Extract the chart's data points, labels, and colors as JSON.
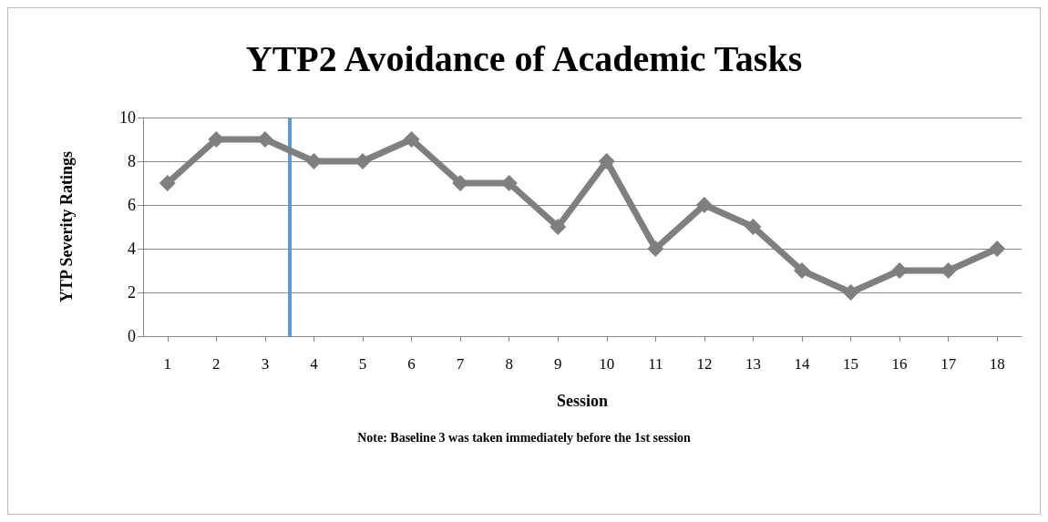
{
  "chart_data": {
    "type": "line",
    "title": "YTP2 Avoidance of Academic Tasks",
    "xlabel": "Session",
    "ylabel": "YTP Severity Ratings",
    "annotations": [
      "Note: Baseline 3 was taken immediately before the 1st session"
    ],
    "x": [
      1,
      2,
      3,
      4,
      5,
      6,
      7,
      8,
      9,
      10,
      11,
      12,
      13,
      14,
      15,
      16,
      17,
      18
    ],
    "series": [
      {
        "color": "#7f7f7f",
        "values": [
          7,
          9,
          9,
          8,
          8,
          9,
          7,
          7,
          5,
          8,
          4,
          6,
          5,
          3,
          2,
          3,
          3,
          4
        ]
      }
    ],
    "xlim": [
      0.5,
      18.5
    ],
    "xticks": [
      1,
      2,
      3,
      4,
      5,
      6,
      7,
      8,
      9,
      10,
      11,
      12,
      13,
      14,
      15,
      16,
      17,
      18
    ],
    "ylim": [
      0,
      10
    ],
    "yticks": [
      0,
      2,
      4,
      6,
      8,
      10
    ],
    "grid": "y",
    "marker": "diamond",
    "line_style": "solid",
    "ref_lines": [
      {
        "axis": "x",
        "value": 3.5,
        "color": "#5b9bd5"
      }
    ]
  }
}
